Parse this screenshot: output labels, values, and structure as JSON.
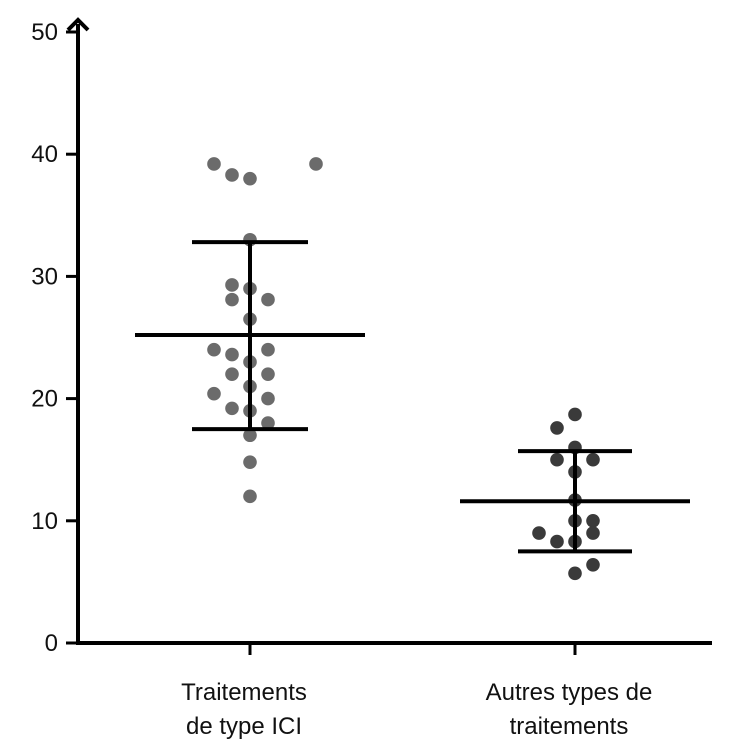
{
  "chart_data": {
    "type": "scatter",
    "title": "",
    "xlabel": "",
    "ylabel": "",
    "ylim": [
      0,
      50
    ],
    "yticks": [
      0,
      10,
      20,
      30,
      40,
      50
    ],
    "grid": false,
    "legend": "none",
    "categories": [
      {
        "lines": [
          "Traitements",
          "de type ICI"
        ]
      },
      {
        "lines": [
          "Autres types de",
          "traitements"
        ]
      }
    ],
    "series": [
      {
        "category": 0,
        "color": "#6b6b6b",
        "mean": 25.2,
        "sd_upper": 32.8,
        "sd_lower": 17.5,
        "points": [
          {
            "x": -0.6,
            "y": 39.2
          },
          {
            "x": 1.1,
            "y": 39.2
          },
          {
            "x": -0.3,
            "y": 38.3
          },
          {
            "x": 0.0,
            "y": 38.0
          },
          {
            "x": 0.0,
            "y": 33.0
          },
          {
            "x": -0.3,
            "y": 29.3
          },
          {
            "x": 0.0,
            "y": 29.0
          },
          {
            "x": -0.3,
            "y": 28.1
          },
          {
            "x": 0.3,
            "y": 28.1
          },
          {
            "x": 0.0,
            "y": 26.5
          },
          {
            "x": -0.6,
            "y": 24.0
          },
          {
            "x": -0.3,
            "y": 23.6
          },
          {
            "x": 0.3,
            "y": 24.0
          },
          {
            "x": 0.0,
            "y": 23.0
          },
          {
            "x": -0.3,
            "y": 22.0
          },
          {
            "x": 0.3,
            "y": 22.0
          },
          {
            "x": 0.0,
            "y": 21.0
          },
          {
            "x": -0.6,
            "y": 20.4
          },
          {
            "x": 0.3,
            "y": 20.0
          },
          {
            "x": -0.3,
            "y": 19.2
          },
          {
            "x": 0.0,
            "y": 19.0
          },
          {
            "x": 0.3,
            "y": 18.0
          },
          {
            "x": 0.0,
            "y": 17.0
          },
          {
            "x": 0.0,
            "y": 14.8
          },
          {
            "x": 0.0,
            "y": 12.0
          }
        ]
      },
      {
        "category": 1,
        "color": "#3a3a3a",
        "mean": 11.6,
        "sd_upper": 15.7,
        "sd_lower": 7.5,
        "points": [
          {
            "x": 0.0,
            "y": 18.7
          },
          {
            "x": -0.3,
            "y": 17.6
          },
          {
            "x": 0.0,
            "y": 16.0
          },
          {
            "x": -0.3,
            "y": 15.0
          },
          {
            "x": 0.3,
            "y": 15.0
          },
          {
            "x": 0.0,
            "y": 14.0
          },
          {
            "x": 0.0,
            "y": 11.7
          },
          {
            "x": 0.0,
            "y": 10.0
          },
          {
            "x": 0.3,
            "y": 10.0
          },
          {
            "x": -0.6,
            "y": 9.0
          },
          {
            "x": 0.3,
            "y": 9.0
          },
          {
            "x": -0.3,
            "y": 8.3
          },
          {
            "x": 0.0,
            "y": 8.3
          },
          {
            "x": 0.3,
            "y": 6.4
          },
          {
            "x": 0.0,
            "y": 5.7
          }
        ]
      }
    ]
  }
}
